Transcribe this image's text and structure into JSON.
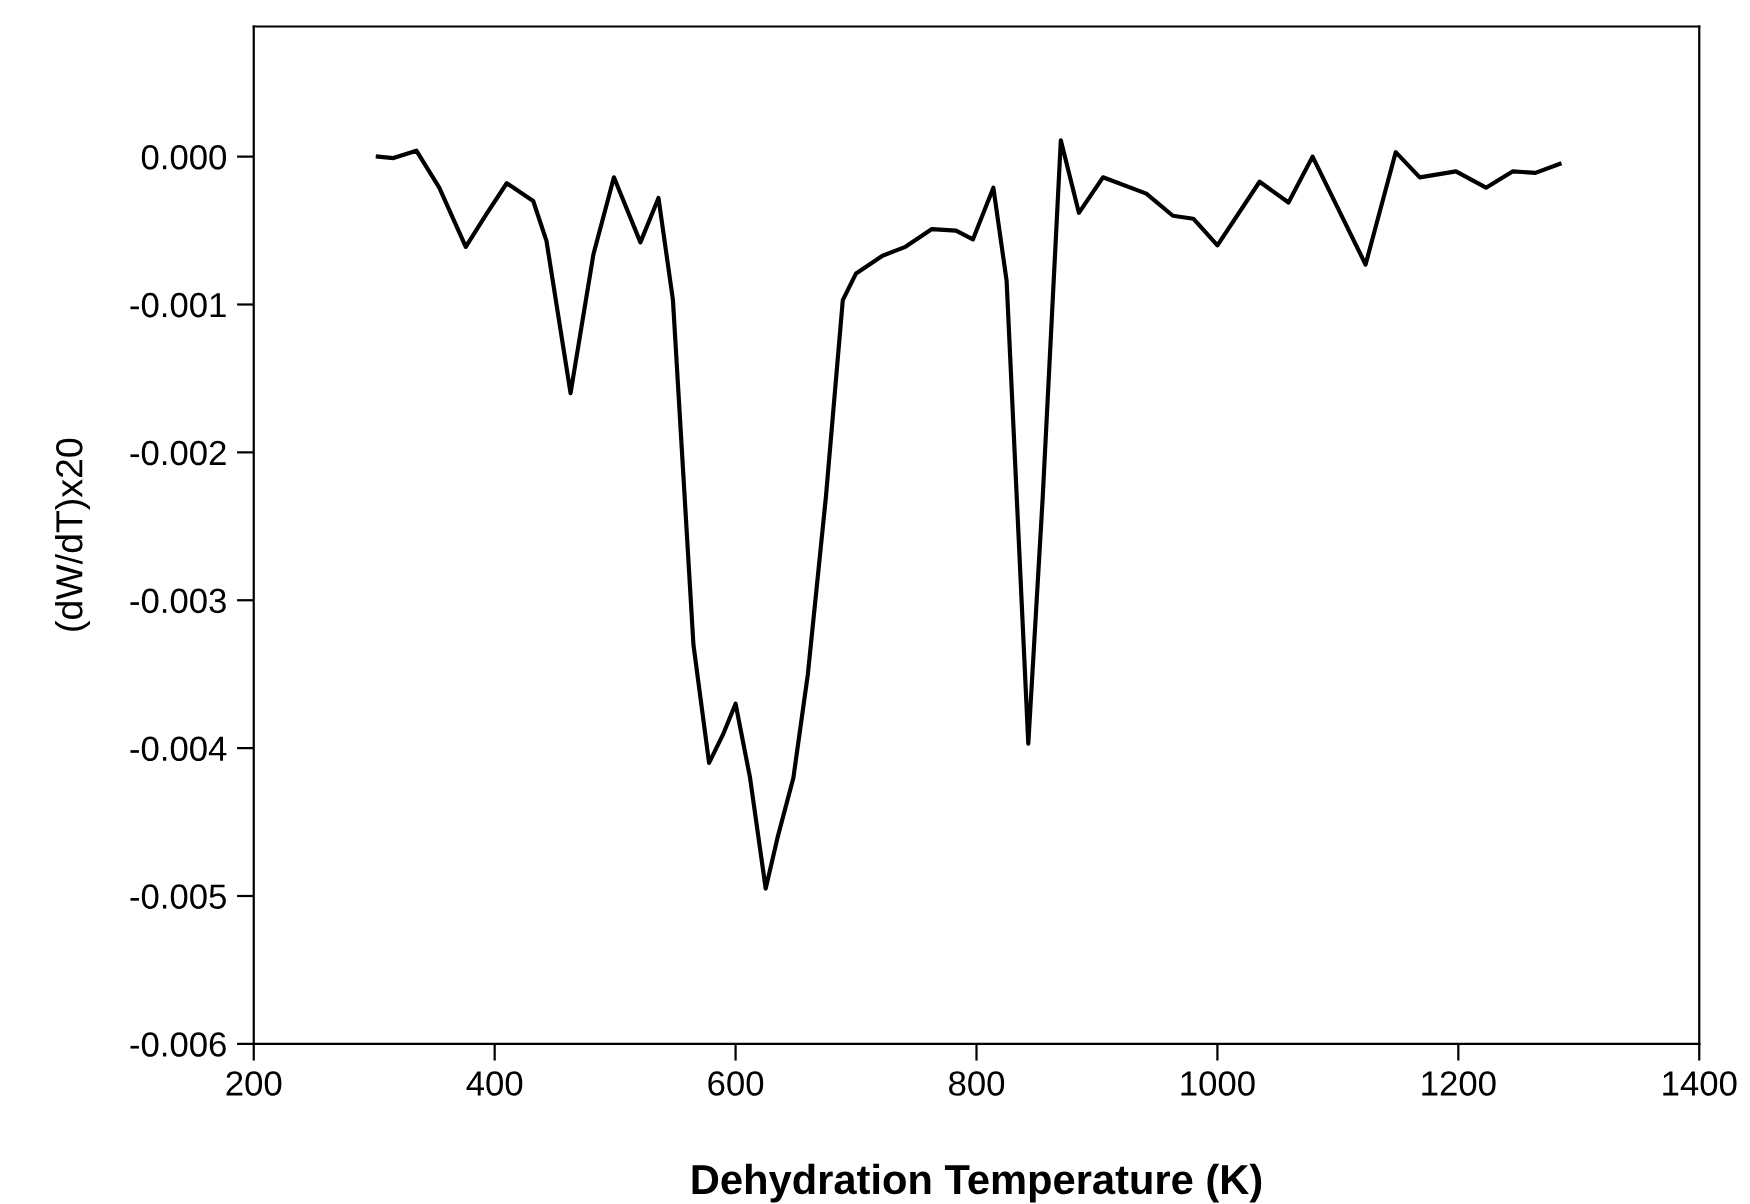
{
  "chart_data": {
    "type": "line",
    "xlabel": "Dehydration Temperature (K)",
    "ylabel": "(dW/dT)x20",
    "xlim": [
      200,
      1400
    ],
    "xticks": [
      200,
      400,
      600,
      800,
      1000,
      1200,
      1400
    ],
    "ylim": [
      -0.006,
      0.00088
    ],
    "yticks": [
      {
        "value": 0,
        "label": "0.000"
      },
      {
        "value": -0.001,
        "label": "-0.001"
      },
      {
        "value": -0.002,
        "label": "-0.002"
      },
      {
        "value": -0.003,
        "label": "-0.003"
      },
      {
        "value": -0.004,
        "label": "-0.004"
      },
      {
        "value": -0.005,
        "label": "-0.005"
      },
      {
        "value": -0.006,
        "label": "-0.006"
      }
    ],
    "grid": false,
    "legend": false,
    "marker": "none",
    "line_style": "solid",
    "series": [
      {
        "color": "#000000",
        "x": [
          303,
          316,
          335,
          354,
          376,
          393,
          410,
          432,
          443,
          463,
          482,
          499,
          521,
          536,
          548,
          565,
          578,
          590,
          600,
          612,
          625,
          635,
          648,
          660,
          675,
          689,
          700,
          722,
          741,
          763,
          783,
          797,
          814,
          825,
          843,
          855,
          870,
          885,
          905,
          941,
          963,
          980,
          1000,
          1035,
          1059,
          1079,
          1123,
          1148,
          1168,
          1198,
          1223,
          1245,
          1264,
          1284
        ],
        "values": [
          0,
          -1e-05,
          4e-05,
          -0.00021,
          -0.00061,
          -0.00039,
          -0.00018,
          -0.0003,
          -0.00057,
          -0.0016,
          -0.00066,
          -0.00014,
          -0.00058,
          -0.00028,
          -0.00097,
          -0.0033,
          -0.0041,
          -0.0039,
          -0.0037,
          -0.0042,
          -0.00495,
          -0.0046,
          -0.0042,
          -0.0035,
          -0.0023,
          -0.00097,
          -0.00079,
          -0.00067,
          -0.00061,
          -0.00049,
          -0.0005,
          -0.00056,
          -0.00021,
          -0.00084,
          -0.00397,
          -0.0023,
          0.00011,
          -0.00038,
          -0.00014,
          -0.00025,
          -0.0004,
          -0.00042,
          -0.0006,
          -0.00017,
          -0.00031,
          0,
          -0.00073,
          3e-05,
          -0.00014,
          -0.0001,
          -0.00021,
          -0.0001,
          -0.00011,
          -5e-05
        ]
      }
    ]
  }
}
